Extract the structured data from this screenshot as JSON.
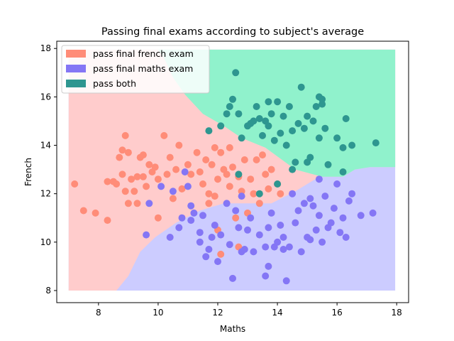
{
  "chart_data": {
    "type": "scatter",
    "title": "Passing final exams according to subject's average",
    "xlabel": "Maths",
    "ylabel": "French",
    "xlim": [
      6.6,
      18.4
    ],
    "ylim": [
      7.5,
      18.3
    ],
    "xticks": [
      8,
      10,
      12,
      14,
      16,
      18
    ],
    "yticks": [
      8,
      10,
      12,
      14,
      16,
      18
    ],
    "grid": false,
    "legend_position": "top-left",
    "legend": [
      {
        "label": "pass final french exam",
        "color": "#ff8c78"
      },
      {
        "label": "pass final maths exam",
        "color": "#8476f5"
      },
      {
        "label": "pass both",
        "color": "#2e9690"
      }
    ],
    "regions": {
      "domain_x": [
        7.0,
        17.95
      ],
      "domain_y": [
        8.0,
        17.95
      ],
      "colors": {
        "french": "#ffcccc",
        "maths": "#ccccff",
        "both": "#90f2cc"
      },
      "both_boundary_top": [
        [
          7.0,
          17.95
        ],
        [
          10.0,
          17.95
        ],
        [
          10.2,
          17.6
        ],
        [
          10.5,
          16.8
        ],
        [
          10.9,
          16.1
        ],
        [
          11.5,
          15.3
        ],
        [
          12.2,
          14.8
        ],
        [
          12.8,
          14.3
        ],
        [
          13.6,
          13.9
        ],
        [
          14.6,
          13.0
        ],
        [
          15.5,
          12.7
        ],
        [
          16.2,
          12.7
        ],
        [
          16.6,
          13.0
        ],
        [
          17.1,
          13.1
        ],
        [
          17.95,
          13.1
        ]
      ],
      "maths_boundary": [
        [
          8.6,
          8.0
        ],
        [
          9.0,
          8.6
        ],
        [
          9.4,
          9.6
        ],
        [
          9.9,
          10.2
        ],
        [
          10.6,
          10.8
        ],
        [
          11.4,
          11.3
        ],
        [
          12.2,
          11.6
        ],
        [
          13.0,
          11.6
        ],
        [
          13.8,
          11.6
        ],
        [
          14.6,
          12.1
        ],
        [
          15.4,
          12.7
        ],
        [
          16.2,
          12.7
        ],
        [
          16.6,
          13.0
        ],
        [
          17.1,
          13.1
        ],
        [
          17.95,
          13.1
        ]
      ]
    },
    "series": [
      {
        "name": "pass final french exam",
        "color": "#ff8c78",
        "points": [
          [
            7.2,
            12.4
          ],
          [
            7.5,
            11.3
          ],
          [
            7.9,
            11.2
          ],
          [
            8.3,
            10.9
          ],
          [
            8.3,
            12.5
          ],
          [
            8.5,
            12.5
          ],
          [
            8.6,
            12.4
          ],
          [
            8.7,
            13.5
          ],
          [
            8.8,
            13.8
          ],
          [
            8.8,
            12.8
          ],
          [
            8.9,
            14.4
          ],
          [
            8.9,
            12.1
          ],
          [
            9.0,
            11.6
          ],
          [
            9.0,
            13.7
          ],
          [
            9.1,
            12.6
          ],
          [
            9.2,
            12.1
          ],
          [
            9.3,
            11.6
          ],
          [
            9.3,
            12.7
          ],
          [
            9.4,
            13.5
          ],
          [
            9.5,
            13.6
          ],
          [
            9.5,
            12.7
          ],
          [
            9.6,
            12.3
          ],
          [
            9.7,
            13.2
          ],
          [
            9.8,
            12.9
          ],
          [
            9.9,
            13.1
          ],
          [
            10.0,
            11.0
          ],
          [
            10.0,
            12.6
          ],
          [
            10.2,
            14.4
          ],
          [
            10.3,
            12.8
          ],
          [
            10.4,
            13.5
          ],
          [
            10.5,
            11.8
          ],
          [
            10.6,
            13.0
          ],
          [
            10.7,
            14.0
          ],
          [
            10.8,
            12.2
          ],
          [
            11.0,
            13.2
          ],
          [
            11.1,
            12.8
          ],
          [
            11.3,
            13.7
          ],
          [
            11.4,
            12.9
          ],
          [
            11.5,
            12.4
          ],
          [
            11.6,
            13.4
          ],
          [
            11.7,
            12.0
          ],
          [
            11.8,
            13.2
          ],
          [
            11.9,
            13.9
          ],
          [
            11.9,
            11.9
          ],
          [
            12.0,
            12.6
          ],
          [
            12.1,
            13.7
          ],
          [
            12.2,
            13.0
          ],
          [
            12.3,
            12.8
          ],
          [
            12.4,
            13.9
          ],
          [
            12.4,
            12.3
          ],
          [
            12.5,
            13.1
          ],
          [
            12.6,
            11.0
          ],
          [
            12.7,
            12.7
          ],
          [
            12.8,
            12.1
          ],
          [
            12.9,
            13.4
          ],
          [
            13.1,
            12.6
          ],
          [
            13.2,
            12.0
          ],
          [
            13.3,
            13.4
          ],
          [
            13.5,
            13.6
          ],
          [
            13.6,
            12.8
          ],
          [
            13.7,
            12.2
          ],
          [
            13.8,
            13.0
          ],
          [
            14.0,
            12.4
          ],
          [
            14.1,
            12.0
          ],
          [
            12.0,
            10.5
          ],
          [
            12.1,
            9.5
          ],
          [
            12.7,
            9.8
          ],
          [
            13.0,
            11.2
          ],
          [
            13.4,
            11.6
          ],
          [
            11.7,
            11.6
          ]
        ]
      },
      {
        "name": "pass final maths exam",
        "color": "#8476f5",
        "points": [
          [
            9.6,
            10.3
          ],
          [
            9.7,
            11.6
          ],
          [
            10.1,
            12.3
          ],
          [
            10.4,
            10.2
          ],
          [
            10.5,
            12.1
          ],
          [
            10.7,
            10.6
          ],
          [
            10.8,
            11.0
          ],
          [
            10.9,
            12.9
          ],
          [
            11.0,
            12.3
          ],
          [
            11.1,
            10.9
          ],
          [
            11.1,
            11.5
          ],
          [
            11.2,
            11.2
          ],
          [
            11.4,
            10.0
          ],
          [
            11.4,
            10.4
          ],
          [
            11.5,
            11.1
          ],
          [
            11.6,
            9.4
          ],
          [
            11.7,
            9.7
          ],
          [
            11.8,
            10.2
          ],
          [
            11.9,
            10.7
          ],
          [
            12.0,
            9.2
          ],
          [
            12.1,
            10.3
          ],
          [
            12.3,
            11.6
          ],
          [
            12.4,
            9.9
          ],
          [
            12.5,
            8.5
          ],
          [
            12.6,
            11.3
          ],
          [
            12.7,
            10.6
          ],
          [
            12.8,
            9.6
          ],
          [
            12.8,
            11.9
          ],
          [
            12.9,
            9.7
          ],
          [
            13.0,
            10.5
          ],
          [
            13.1,
            11.0
          ],
          [
            13.2,
            9.6
          ],
          [
            13.4,
            10.3
          ],
          [
            13.6,
            9.8
          ],
          [
            13.6,
            8.6
          ],
          [
            13.7,
            10.6
          ],
          [
            13.8,
            11.2
          ],
          [
            13.9,
            9.8
          ],
          [
            14.0,
            10.0
          ],
          [
            14.1,
            10.7
          ],
          [
            14.2,
            10.2
          ],
          [
            14.2,
            9.7
          ],
          [
            14.3,
            8.4
          ],
          [
            14.4,
            9.8
          ],
          [
            14.5,
            12.0
          ],
          [
            14.6,
            10.8
          ],
          [
            14.7,
            11.3
          ],
          [
            14.8,
            9.6
          ],
          [
            14.9,
            11.6
          ],
          [
            15.0,
            10.2
          ],
          [
            15.1,
            11.8
          ],
          [
            15.2,
            11.5
          ],
          [
            15.3,
            10.5
          ],
          [
            15.4,
            11.1
          ],
          [
            15.5,
            10.0
          ],
          [
            15.6,
            11.9
          ],
          [
            15.8,
            10.8
          ],
          [
            15.9,
            11.4
          ],
          [
            16.0,
            12.4
          ],
          [
            16.1,
            10.4
          ],
          [
            16.2,
            11.0
          ],
          [
            16.3,
            10.2
          ],
          [
            16.4,
            11.7
          ],
          [
            16.5,
            12.0
          ],
          [
            16.8,
            11.1
          ],
          [
            17.2,
            11.2
          ],
          [
            15.4,
            12.6
          ],
          [
            13.7,
            9.0
          ],
          [
            15.1,
            10.1
          ],
          [
            15.7,
            10.6
          ]
        ]
      },
      {
        "name": "pass both",
        "color": "#2e9690",
        "points": [
          [
            11.7,
            14.6
          ],
          [
            12.1,
            14.8
          ],
          [
            12.3,
            15.3
          ],
          [
            12.4,
            15.6
          ],
          [
            12.5,
            15.9
          ],
          [
            12.6,
            17.0
          ],
          [
            12.7,
            15.3
          ],
          [
            12.8,
            14.3
          ],
          [
            13.0,
            14.8
          ],
          [
            13.1,
            14.9
          ],
          [
            13.2,
            15.0
          ],
          [
            13.3,
            15.6
          ],
          [
            13.4,
            15.1
          ],
          [
            13.5,
            14.4
          ],
          [
            13.6,
            15.0
          ],
          [
            13.7,
            15.8
          ],
          [
            13.8,
            15.3
          ],
          [
            13.9,
            14.2
          ],
          [
            14.0,
            15.8
          ],
          [
            14.1,
            14.5
          ],
          [
            14.2,
            15.2
          ],
          [
            14.3,
            14.0
          ],
          [
            14.4,
            15.6
          ],
          [
            14.5,
            14.6
          ],
          [
            14.6,
            13.3
          ],
          [
            14.7,
            14.9
          ],
          [
            14.8,
            16.4
          ],
          [
            14.9,
            14.7
          ],
          [
            15.0,
            15.2
          ],
          [
            15.1,
            13.5
          ],
          [
            15.2,
            15.0
          ],
          [
            15.3,
            15.6
          ],
          [
            15.4,
            14.3
          ],
          [
            15.5,
            15.9
          ],
          [
            15.6,
            14.7
          ],
          [
            15.7,
            13.2
          ],
          [
            16.0,
            14.3
          ],
          [
            16.2,
            13.9
          ],
          [
            16.3,
            15.1
          ],
          [
            16.5,
            14.0
          ],
          [
            17.3,
            14.1
          ],
          [
            12.7,
            12.8
          ],
          [
            13.4,
            12.0
          ],
          [
            14.0,
            12.4
          ],
          [
            14.5,
            13.0
          ],
          [
            15.0,
            13.3
          ],
          [
            16.2,
            12.9
          ],
          [
            15.4,
            16.0
          ],
          [
            15.5,
            15.7
          ],
          [
            13.7,
            14.8
          ]
        ]
      }
    ]
  }
}
